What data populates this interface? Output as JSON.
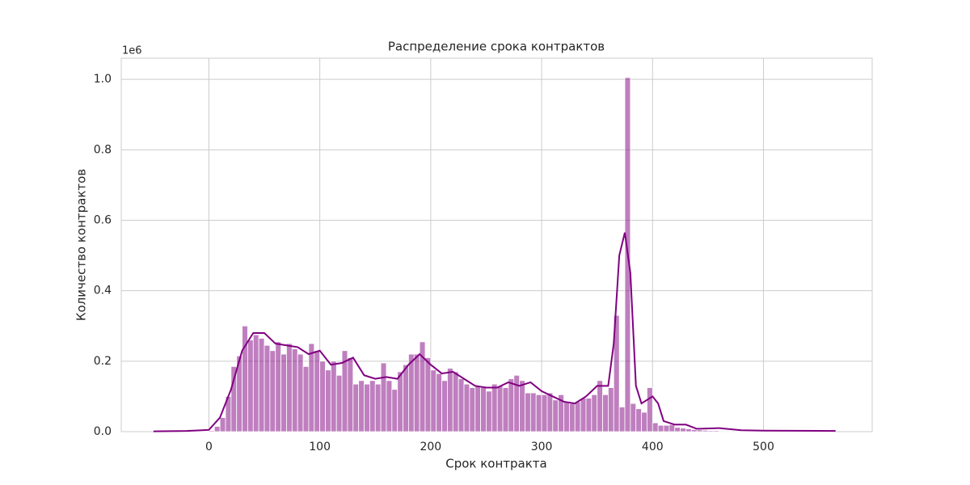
{
  "chart_data": {
    "type": "histogram",
    "title": "Распределение срока контрактов",
    "x_label": "Срок контракта",
    "y_label": "Количество контрактов",
    "y_offset_label": "1e6",
    "color": "purple",
    "grid": true,
    "bins": [
      -50,
      -45,
      -40,
      -35,
      -30,
      -25,
      -20,
      -15,
      -10,
      -5,
      0,
      5,
      10,
      15,
      20,
      25,
      30,
      35,
      40,
      45,
      50,
      55,
      60,
      65,
      70,
      75,
      80,
      85,
      90,
      95,
      100,
      105,
      110,
      115,
      120,
      125,
      130,
      135,
      140,
      145,
      150,
      155,
      160,
      165,
      170,
      175,
      180,
      185,
      190,
      195,
      200,
      205,
      210,
      215,
      220,
      225,
      230,
      235,
      240,
      245,
      250,
      255,
      260,
      265,
      270,
      275,
      280,
      285,
      290,
      295,
      300,
      305,
      310,
      315,
      320,
      325,
      330,
      335,
      340,
      345,
      350,
      355,
      360,
      365,
      370,
      375,
      380,
      385,
      390,
      395,
      400,
      405,
      410,
      415,
      420,
      425,
      430,
      435,
      440,
      445,
      450,
      455,
      460,
      465,
      470,
      475,
      480,
      485,
      490,
      495,
      500,
      505,
      510,
      515,
      520,
      525,
      530,
      535,
      540,
      545,
      550,
      555,
      560,
      565
    ],
    "values": [
      0.001,
      0.001,
      0.001,
      0.001,
      0.001,
      0.001,
      0.001,
      0.001,
      0.001,
      0.001,
      0.003,
      0.015,
      0.04,
      0.1,
      0.185,
      0.215,
      0.3,
      0.26,
      0.275,
      0.265,
      0.245,
      0.23,
      0.255,
      0.22,
      0.25,
      0.235,
      0.22,
      0.185,
      0.25,
      0.23,
      0.2,
      0.175,
      0.2,
      0.16,
      0.23,
      0.21,
      0.135,
      0.145,
      0.135,
      0.145,
      0.135,
      0.195,
      0.145,
      0.12,
      0.17,
      0.19,
      0.22,
      0.22,
      0.255,
      0.21,
      0.175,
      0.165,
      0.145,
      0.18,
      0.17,
      0.15,
      0.135,
      0.125,
      0.13,
      0.125,
      0.115,
      0.135,
      0.13,
      0.125,
      0.15,
      0.16,
      0.145,
      0.11,
      0.11,
      0.105,
      0.105,
      0.11,
      0.09,
      0.105,
      0.085,
      0.08,
      0.085,
      0.095,
      0.095,
      0.105,
      0.145,
      0.105,
      0.125,
      0.33,
      0.07,
      1.005,
      0.08,
      0.065,
      0.055,
      0.125,
      0.025,
      0.018,
      0.018,
      0.02,
      0.012,
      0.01,
      0.008,
      0.006,
      0.005,
      0.004,
      0.003,
      0.003,
      0.002,
      0.002,
      0.002,
      0.002,
      0.001,
      0.001,
      0.001,
      0.001,
      0.001,
      0.001,
      0.001,
      0.001,
      0.001,
      0.001,
      0.001,
      0.001,
      0.001,
      0.001,
      0.001,
      0.001,
      0.001
    ],
    "kde": {
      "x": [
        -50,
        -20,
        0,
        10,
        20,
        30,
        40,
        50,
        60,
        70,
        80,
        90,
        100,
        110,
        120,
        130,
        140,
        150,
        160,
        170,
        180,
        190,
        200,
        210,
        220,
        230,
        240,
        250,
        260,
        270,
        280,
        290,
        300,
        310,
        320,
        330,
        340,
        350,
        360,
        365,
        370,
        375,
        380,
        385,
        390,
        400,
        405,
        410,
        420,
        430,
        440,
        460,
        480,
        500,
        565
      ],
      "values": [
        0.001,
        0.002,
        0.005,
        0.04,
        0.12,
        0.23,
        0.28,
        0.28,
        0.25,
        0.245,
        0.24,
        0.22,
        0.23,
        0.19,
        0.195,
        0.21,
        0.16,
        0.15,
        0.155,
        0.15,
        0.19,
        0.22,
        0.19,
        0.165,
        0.17,
        0.15,
        0.13,
        0.125,
        0.125,
        0.14,
        0.13,
        0.14,
        0.115,
        0.1,
        0.085,
        0.08,
        0.1,
        0.13,
        0.13,
        0.25,
        0.5,
        0.565,
        0.45,
        0.13,
        0.08,
        0.1,
        0.08,
        0.03,
        0.02,
        0.02,
        0.008,
        0.01,
        0.004,
        0.003,
        0.002
      ]
    },
    "xlim": [
      -79,
      598
    ],
    "ylim": [
      0,
      1.06
    ],
    "xticks": [
      0,
      100,
      200,
      300,
      400,
      500
    ],
    "yticks": [
      {
        "value": 0,
        "label": "0.0"
      },
      0.2,
      0.4,
      0.6,
      0.8,
      {
        "value": 1,
        "label": "1.0"
      }
    ]
  }
}
